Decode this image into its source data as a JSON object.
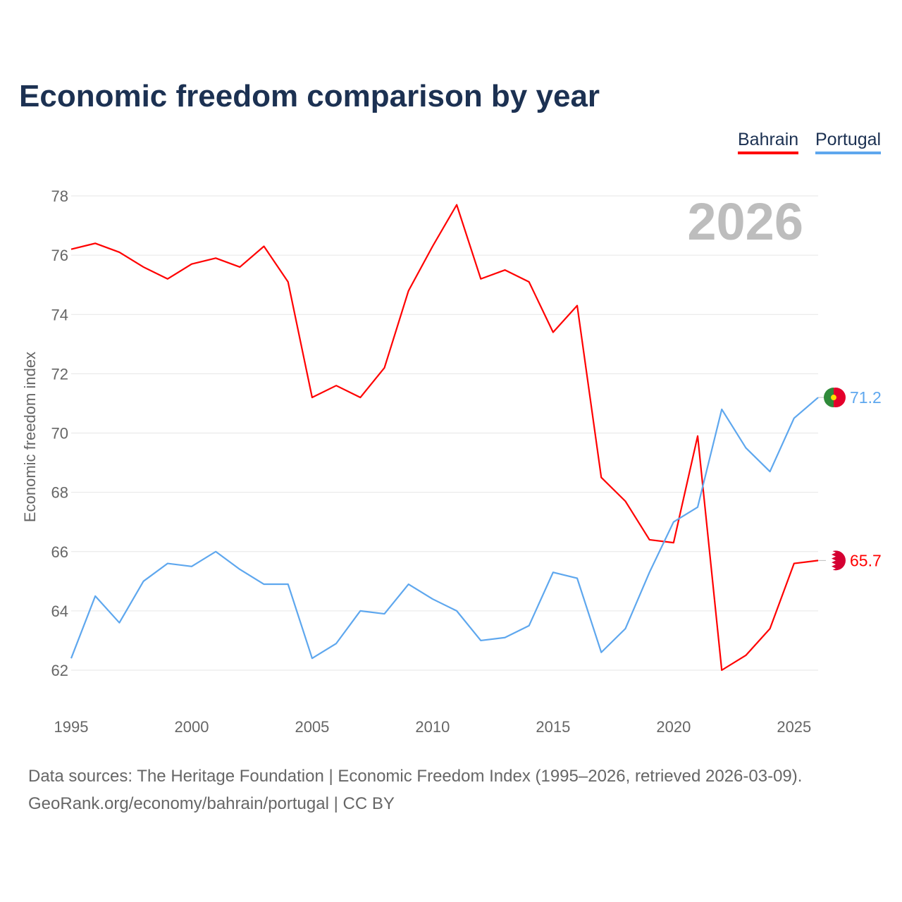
{
  "title": "Economic freedom comparison by year",
  "legend": [
    {
      "name": "Bahrain",
      "color": "#ff0000"
    },
    {
      "name": "Portugal",
      "color": "#5ea7ee"
    }
  ],
  "footer": {
    "line1": "Data sources: The Heritage Foundation | Economic Freedom Index (1995–2026, retrieved 2026-03-09).",
    "line2": "GeoRank.org/economy/bahrain/portugal | CC BY"
  },
  "chart_data": {
    "type": "line",
    "title": "Economic freedom comparison by year",
    "ylabel": "Economic freedom index",
    "xlabel": "",
    "year_label": "2026",
    "ylim": [
      62,
      78
    ],
    "yticks": [
      62,
      64,
      66,
      68,
      70,
      72,
      74,
      76,
      78
    ],
    "xticks": [
      1995,
      2000,
      2005,
      2010,
      2015,
      2020,
      2025
    ],
    "x": [
      1995,
      1996,
      1997,
      1998,
      1999,
      2000,
      2001,
      2002,
      2003,
      2004,
      2005,
      2006,
      2007,
      2008,
      2009,
      2010,
      2011,
      2012,
      2013,
      2014,
      2015,
      2016,
      2017,
      2018,
      2019,
      2020,
      2021,
      2022,
      2023,
      2024,
      2025,
      2026
    ],
    "series": [
      {
        "name": "Bahrain",
        "color": "#ff0000",
        "end_label": "65.7",
        "values": [
          76.2,
          76.4,
          76.1,
          75.6,
          75.2,
          75.7,
          75.9,
          75.6,
          76.3,
          75.1,
          71.2,
          71.6,
          71.2,
          72.2,
          74.8,
          76.3,
          77.7,
          75.2,
          75.5,
          75.1,
          73.4,
          74.3,
          68.5,
          67.7,
          66.4,
          66.3,
          69.9,
          62.0,
          62.5,
          63.4,
          65.6,
          65.7
        ]
      },
      {
        "name": "Portugal",
        "color": "#5ea7ee",
        "end_label": "71.2",
        "values": [
          62.4,
          64.5,
          63.6,
          65.0,
          65.6,
          65.5,
          66.0,
          65.4,
          64.9,
          64.9,
          62.4,
          62.9,
          64.0,
          63.9,
          64.9,
          64.4,
          64.0,
          63.0,
          63.1,
          63.5,
          65.3,
          65.1,
          62.6,
          63.4,
          65.3,
          67.0,
          67.5,
          70.8,
          69.5,
          68.7,
          70.5,
          71.2
        ]
      }
    ]
  }
}
